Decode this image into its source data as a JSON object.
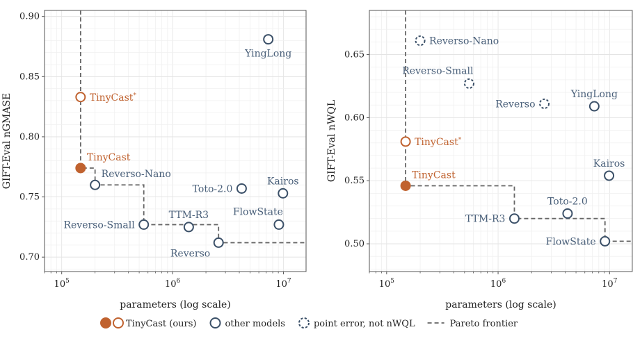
{
  "colors": {
    "ours": "#c0622f",
    "other": "#3b5068",
    "frontier": "#666666",
    "label_other": "#4a607a",
    "label_ours": "#c0622f"
  },
  "chart_data": [
    {
      "type": "scatter",
      "xlabel": "parameters (log scale)",
      "ylabel": "GIFT-Eval nGMASE",
      "xscale": "log",
      "xlim": [
        70000,
        16000000
      ],
      "ylim": [
        0.688,
        0.905
      ],
      "yticks": [
        "0.70",
        "0.75",
        "0.80",
        "0.85",
        "0.90"
      ],
      "ytick_values": [
        0.7,
        0.75,
        0.8,
        0.85,
        0.9
      ],
      "xticks": [
        "10^5",
        "10^6",
        "10^7"
      ],
      "xtick_values": [
        100000,
        1000000,
        10000000
      ],
      "grid": true,
      "points": [
        {
          "name": "YingLong",
          "x": 7300000,
          "y": 0.881,
          "group": "other",
          "style": "hollow",
          "label_pos": "below"
        },
        {
          "name": "TinyCast*",
          "x": 148000,
          "y": 0.833,
          "group": "ours",
          "style": "hollow",
          "label_pos": "right"
        },
        {
          "name": "TinyCast",
          "x": 148000,
          "y": 0.774,
          "group": "ours",
          "style": "filled",
          "label_pos": "above-right"
        },
        {
          "name": "Reverso-Nano",
          "x": 200000,
          "y": 0.76,
          "group": "other",
          "style": "hollow",
          "label_pos": "above-right"
        },
        {
          "name": "Toto-2.0",
          "x": 4200000,
          "y": 0.757,
          "group": "other",
          "style": "hollow",
          "label_pos": "left"
        },
        {
          "name": "Kairos",
          "x": 9900000,
          "y": 0.753,
          "group": "other",
          "style": "hollow",
          "label_pos": "above"
        },
        {
          "name": "TTM-R3",
          "x": 1400000,
          "y": 0.725,
          "group": "other",
          "style": "hollow",
          "label_pos": "above"
        },
        {
          "name": "Reverso-Small",
          "x": 550000,
          "y": 0.727,
          "group": "other",
          "style": "hollow",
          "label_pos": "left"
        },
        {
          "name": "FlowState",
          "x": 9100000,
          "y": 0.727,
          "group": "other",
          "style": "hollow",
          "label_pos": "above-left"
        },
        {
          "name": "Reverso",
          "x": 2600000,
          "y": 0.712,
          "group": "other",
          "style": "hollow",
          "label_pos": "below-left"
        }
      ],
      "frontier": [
        [
          148000,
          0.774
        ],
        [
          200000,
          0.76
        ],
        [
          550000,
          0.727
        ],
        [
          2600000,
          0.712
        ]
      ]
    },
    {
      "type": "scatter",
      "xlabel": "parameters (log scale)",
      "ylabel": "GIFT-Eval nWQL",
      "xscale": "log",
      "xlim": [
        70000,
        16000000
      ],
      "ylim": [
        0.478,
        0.685
      ],
      "yticks": [
        "0.50",
        "0.55",
        "0.60",
        "0.65"
      ],
      "ytick_values": [
        0.5,
        0.55,
        0.6,
        0.65
      ],
      "xticks": [
        "10^5",
        "10^6",
        "10^7"
      ],
      "xtick_values": [
        100000,
        1000000,
        10000000
      ],
      "grid": true,
      "points": [
        {
          "name": "Reverso-Nano",
          "x": 200000,
          "y": 0.661,
          "group": "other",
          "style": "dashed",
          "label_pos": "right"
        },
        {
          "name": "Reverso-Small",
          "x": 550000,
          "y": 0.627,
          "group": "other",
          "style": "dashed",
          "label_pos": "above-left"
        },
        {
          "name": "Reverso",
          "x": 2600000,
          "y": 0.611,
          "group": "other",
          "style": "dashed",
          "label_pos": "left"
        },
        {
          "name": "YingLong",
          "x": 7300000,
          "y": 0.609,
          "group": "other",
          "style": "hollow",
          "label_pos": "above"
        },
        {
          "name": "TinyCast*",
          "x": 148000,
          "y": 0.581,
          "group": "ours",
          "style": "hollow",
          "label_pos": "right"
        },
        {
          "name": "Kairos",
          "x": 9900000,
          "y": 0.554,
          "group": "other",
          "style": "hollow",
          "label_pos": "above"
        },
        {
          "name": "TinyCast",
          "x": 148000,
          "y": 0.546,
          "group": "ours",
          "style": "filled",
          "label_pos": "above-right"
        },
        {
          "name": "Toto-2.0",
          "x": 4200000,
          "y": 0.524,
          "group": "other",
          "style": "hollow",
          "label_pos": "above"
        },
        {
          "name": "TTM-R3",
          "x": 1400000,
          "y": 0.52,
          "group": "other",
          "style": "hollow",
          "label_pos": "left"
        },
        {
          "name": "FlowState",
          "x": 9100000,
          "y": 0.502,
          "group": "other",
          "style": "hollow",
          "label_pos": "left"
        }
      ],
      "frontier": [
        [
          148000,
          0.546
        ],
        [
          1400000,
          0.52
        ],
        [
          9100000,
          0.502
        ]
      ]
    }
  ],
  "legend": {
    "items": [
      {
        "label": "TinyCast (ours)",
        "kind": "ours"
      },
      {
        "label": "other models",
        "kind": "other"
      },
      {
        "label": "point error, not nWQL",
        "kind": "dashed"
      },
      {
        "label": "Pareto frontier",
        "kind": "line"
      }
    ]
  }
}
